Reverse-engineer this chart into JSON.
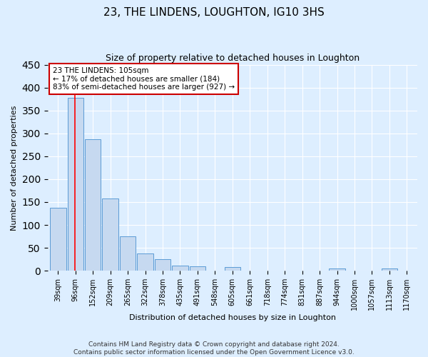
{
  "title": "23, THE LINDENS, LOUGHTON, IG10 3HS",
  "subtitle": "Size of property relative to detached houses in Loughton",
  "xlabel": "Distribution of detached houses by size in Loughton",
  "ylabel": "Number of detached properties",
  "bar_labels": [
    "39sqm",
    "96sqm",
    "152sqm",
    "209sqm",
    "265sqm",
    "322sqm",
    "378sqm",
    "435sqm",
    "491sqm",
    "548sqm",
    "605sqm",
    "661sqm",
    "718sqm",
    "774sqm",
    "831sqm",
    "887sqm",
    "944sqm",
    "1000sqm",
    "1057sqm",
    "1113sqm",
    "1170sqm"
  ],
  "bar_heights": [
    137,
    378,
    287,
    158,
    75,
    38,
    25,
    11,
    9,
    0,
    8,
    0,
    0,
    0,
    0,
    0,
    5,
    0,
    0,
    5,
    0
  ],
  "bar_color": "#c6d9f0",
  "bar_edge_color": "#5b9bd5",
  "ylim": [
    0,
    450
  ],
  "yticks": [
    0,
    50,
    100,
    150,
    200,
    250,
    300,
    350,
    400,
    450
  ],
  "red_line_x": 1,
  "annotation_text": "23 THE LINDENS: 105sqm\n← 17% of detached houses are smaller (184)\n83% of semi-detached houses are larger (927) →",
  "annotation_box_color": "#ffffff",
  "annotation_box_edge": "#cc0000",
  "footer_line1": "Contains HM Land Registry data © Crown copyright and database right 2024.",
  "footer_line2": "Contains public sector information licensed under the Open Government Licence v3.0.",
  "background_color": "#ddeeff",
  "plot_background": "#ddeeff",
  "title_fontsize": 11,
  "subtitle_fontsize": 9,
  "tick_label_fontsize": 7,
  "footer_fontsize": 6.5,
  "ylabel_fontsize": 8,
  "xlabel_fontsize": 8
}
